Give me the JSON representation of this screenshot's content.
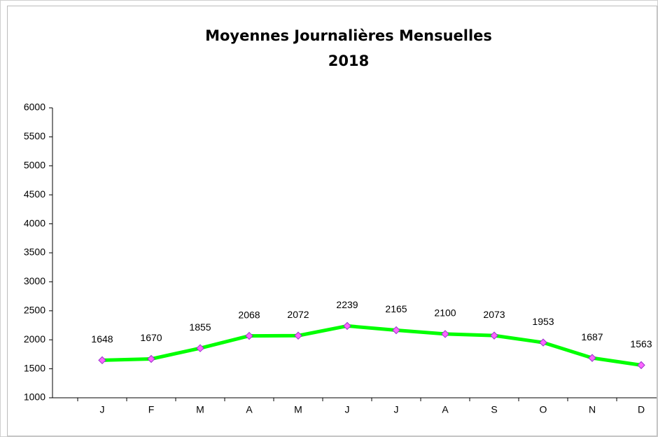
{
  "chart_data": {
    "type": "line",
    "title": "Moyennes Journalières Mensuelles",
    "subtitle": "2018",
    "categories": [
      "J",
      "F",
      "M",
      "A",
      "M",
      "J",
      "J",
      "A",
      "S",
      "O",
      "N",
      "D"
    ],
    "values": [
      1648,
      1670,
      1855,
      2068,
      2072,
      2239,
      2165,
      2100,
      2073,
      1953,
      1687,
      1563
    ],
    "color": "#00ff00",
    "marker_color": "#ff66ff",
    "ylim": [
      1000,
      6000
    ],
    "yticks": [
      1000,
      1500,
      2000,
      2500,
      3000,
      3500,
      4000,
      4500,
      5000,
      5500,
      6000
    ]
  }
}
